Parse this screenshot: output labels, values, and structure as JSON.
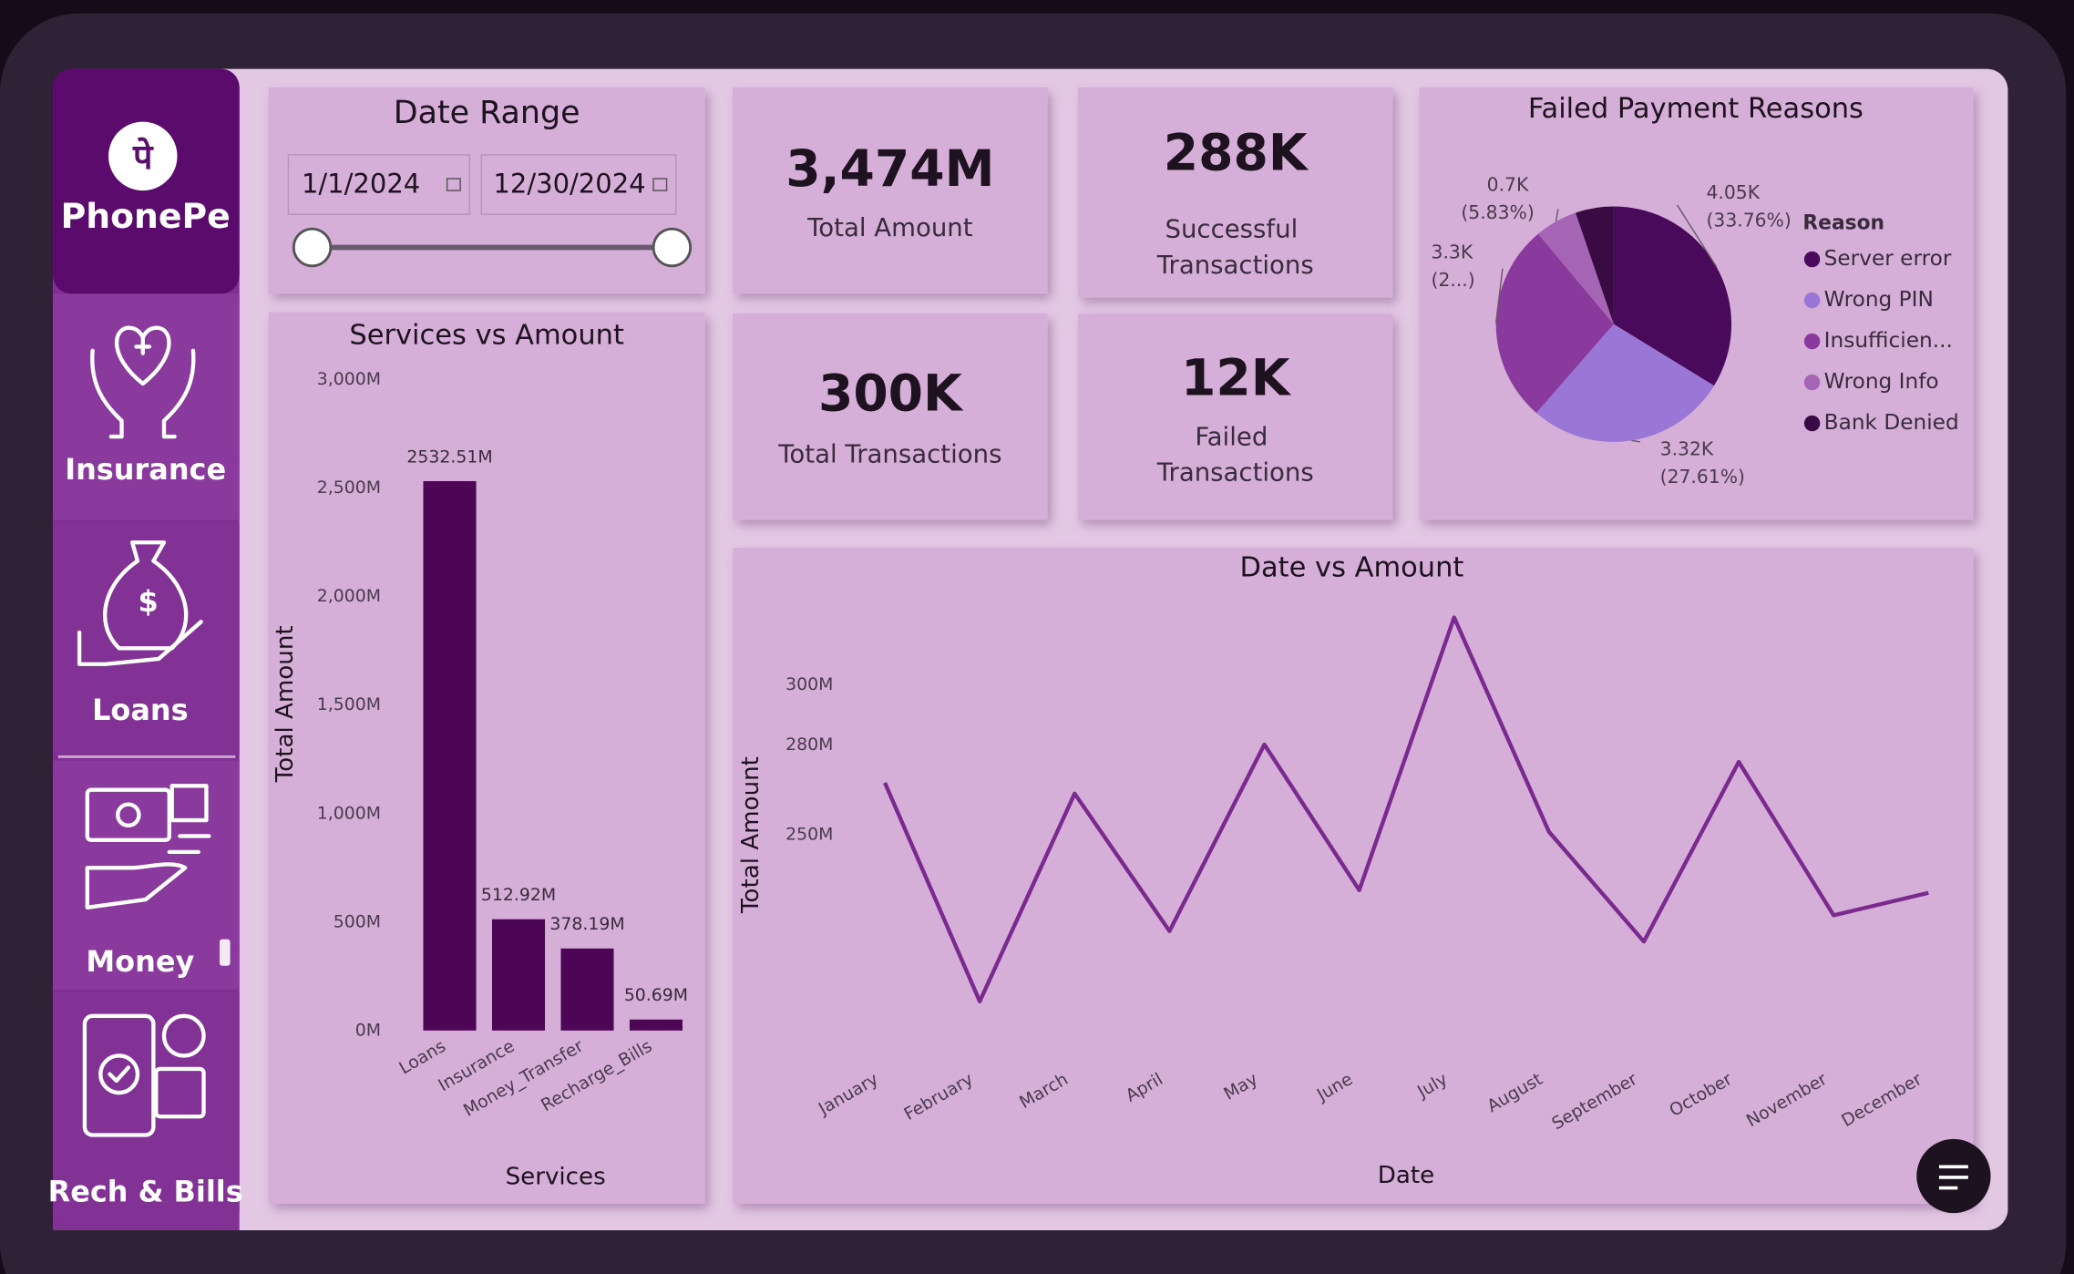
{
  "sidebar": {
    "logo_glyph": "पे",
    "brand": "PhonePe",
    "items": [
      "Insurance",
      "Loans",
      "Money",
      "Rech & Bills"
    ]
  },
  "date_range": {
    "title": "Date Range",
    "start": "1/1/2024",
    "end": "12/30/2024"
  },
  "kpis": [
    {
      "value": "3,474M",
      "label": "Total Amount"
    },
    {
      "value": "288K",
      "label": "Successful Transactions"
    },
    {
      "value": "300K",
      "label": "Total Transactions"
    },
    {
      "value": "12K",
      "label": "Failed Transactions"
    }
  ],
  "chart_data": [
    {
      "type": "bar",
      "title": "Services vs Amount",
      "x_label": "Services",
      "y_label": "Total Amount",
      "categories": [
        "Loans",
        "Insurance",
        "Money_Transfer",
        "Recharge_Bills"
      ],
      "values": [
        2532.51,
        512.92,
        378.19,
        50.69
      ],
      "value_labels": [
        "2532.51M",
        "512.92M",
        "378.19M",
        "50.69M"
      ],
      "color": "#4d0656",
      "ylim": [
        0,
        3000
      ],
      "yticks": [
        {
          "value": 0,
          "label": "0M"
        },
        {
          "value": 500,
          "label": "500M"
        },
        {
          "value": 1000,
          "label": "1,000M"
        },
        {
          "value": 1500,
          "label": "1,500M"
        },
        {
          "value": 2000,
          "label": "2,000M"
        },
        {
          "value": 2500,
          "label": "2,500M"
        },
        {
          "value": 3000,
          "label": "3,000M"
        }
      ]
    },
    {
      "type": "pie",
      "title": "Failed Payment Reasons",
      "legend_title": "Reason",
      "legend": "right",
      "categories": [
        "Server error",
        "Wrong PIN",
        "Insufficien...",
        "Wrong Info",
        "Bank Denied"
      ],
      "values": [
        4.05,
        3.32,
        3.3,
        0.7,
        0.63
      ],
      "value_labels": [
        "4.05K (33.76%)",
        "3.32K (27.61%)",
        "3.3K (2...)",
        "0.7K (5.83%)",
        null
      ],
      "colors": [
        "#4a0a5c",
        "#9a76d6",
        "#8a3a9c",
        "#a664b4",
        "#3a0a44"
      ]
    },
    {
      "type": "line",
      "title": "Date vs Amount",
      "x_label": "Date",
      "y_label": "Total Amount",
      "categories": [
        "January",
        "February",
        "March",
        "April",
        "May",
        "June",
        "July",
        "August",
        "September",
        "October",
        "November",
        "December"
      ],
      "values": [
        267.3,
        194.2,
        263.7,
        217.7,
        280.1,
        231.4,
        322.6,
        250.9,
        214.2,
        274.3,
        223.0,
        230.5
      ],
      "color": "#7a2a8e",
      "ylim": [
        188,
        330
      ],
      "yticks": [
        {
          "value": 300,
          "label": "300M"
        },
        {
          "value": 250,
          "label": "250M"
        },
        {
          "value": 280,
          "label": "280M"
        }
      ]
    }
  ]
}
